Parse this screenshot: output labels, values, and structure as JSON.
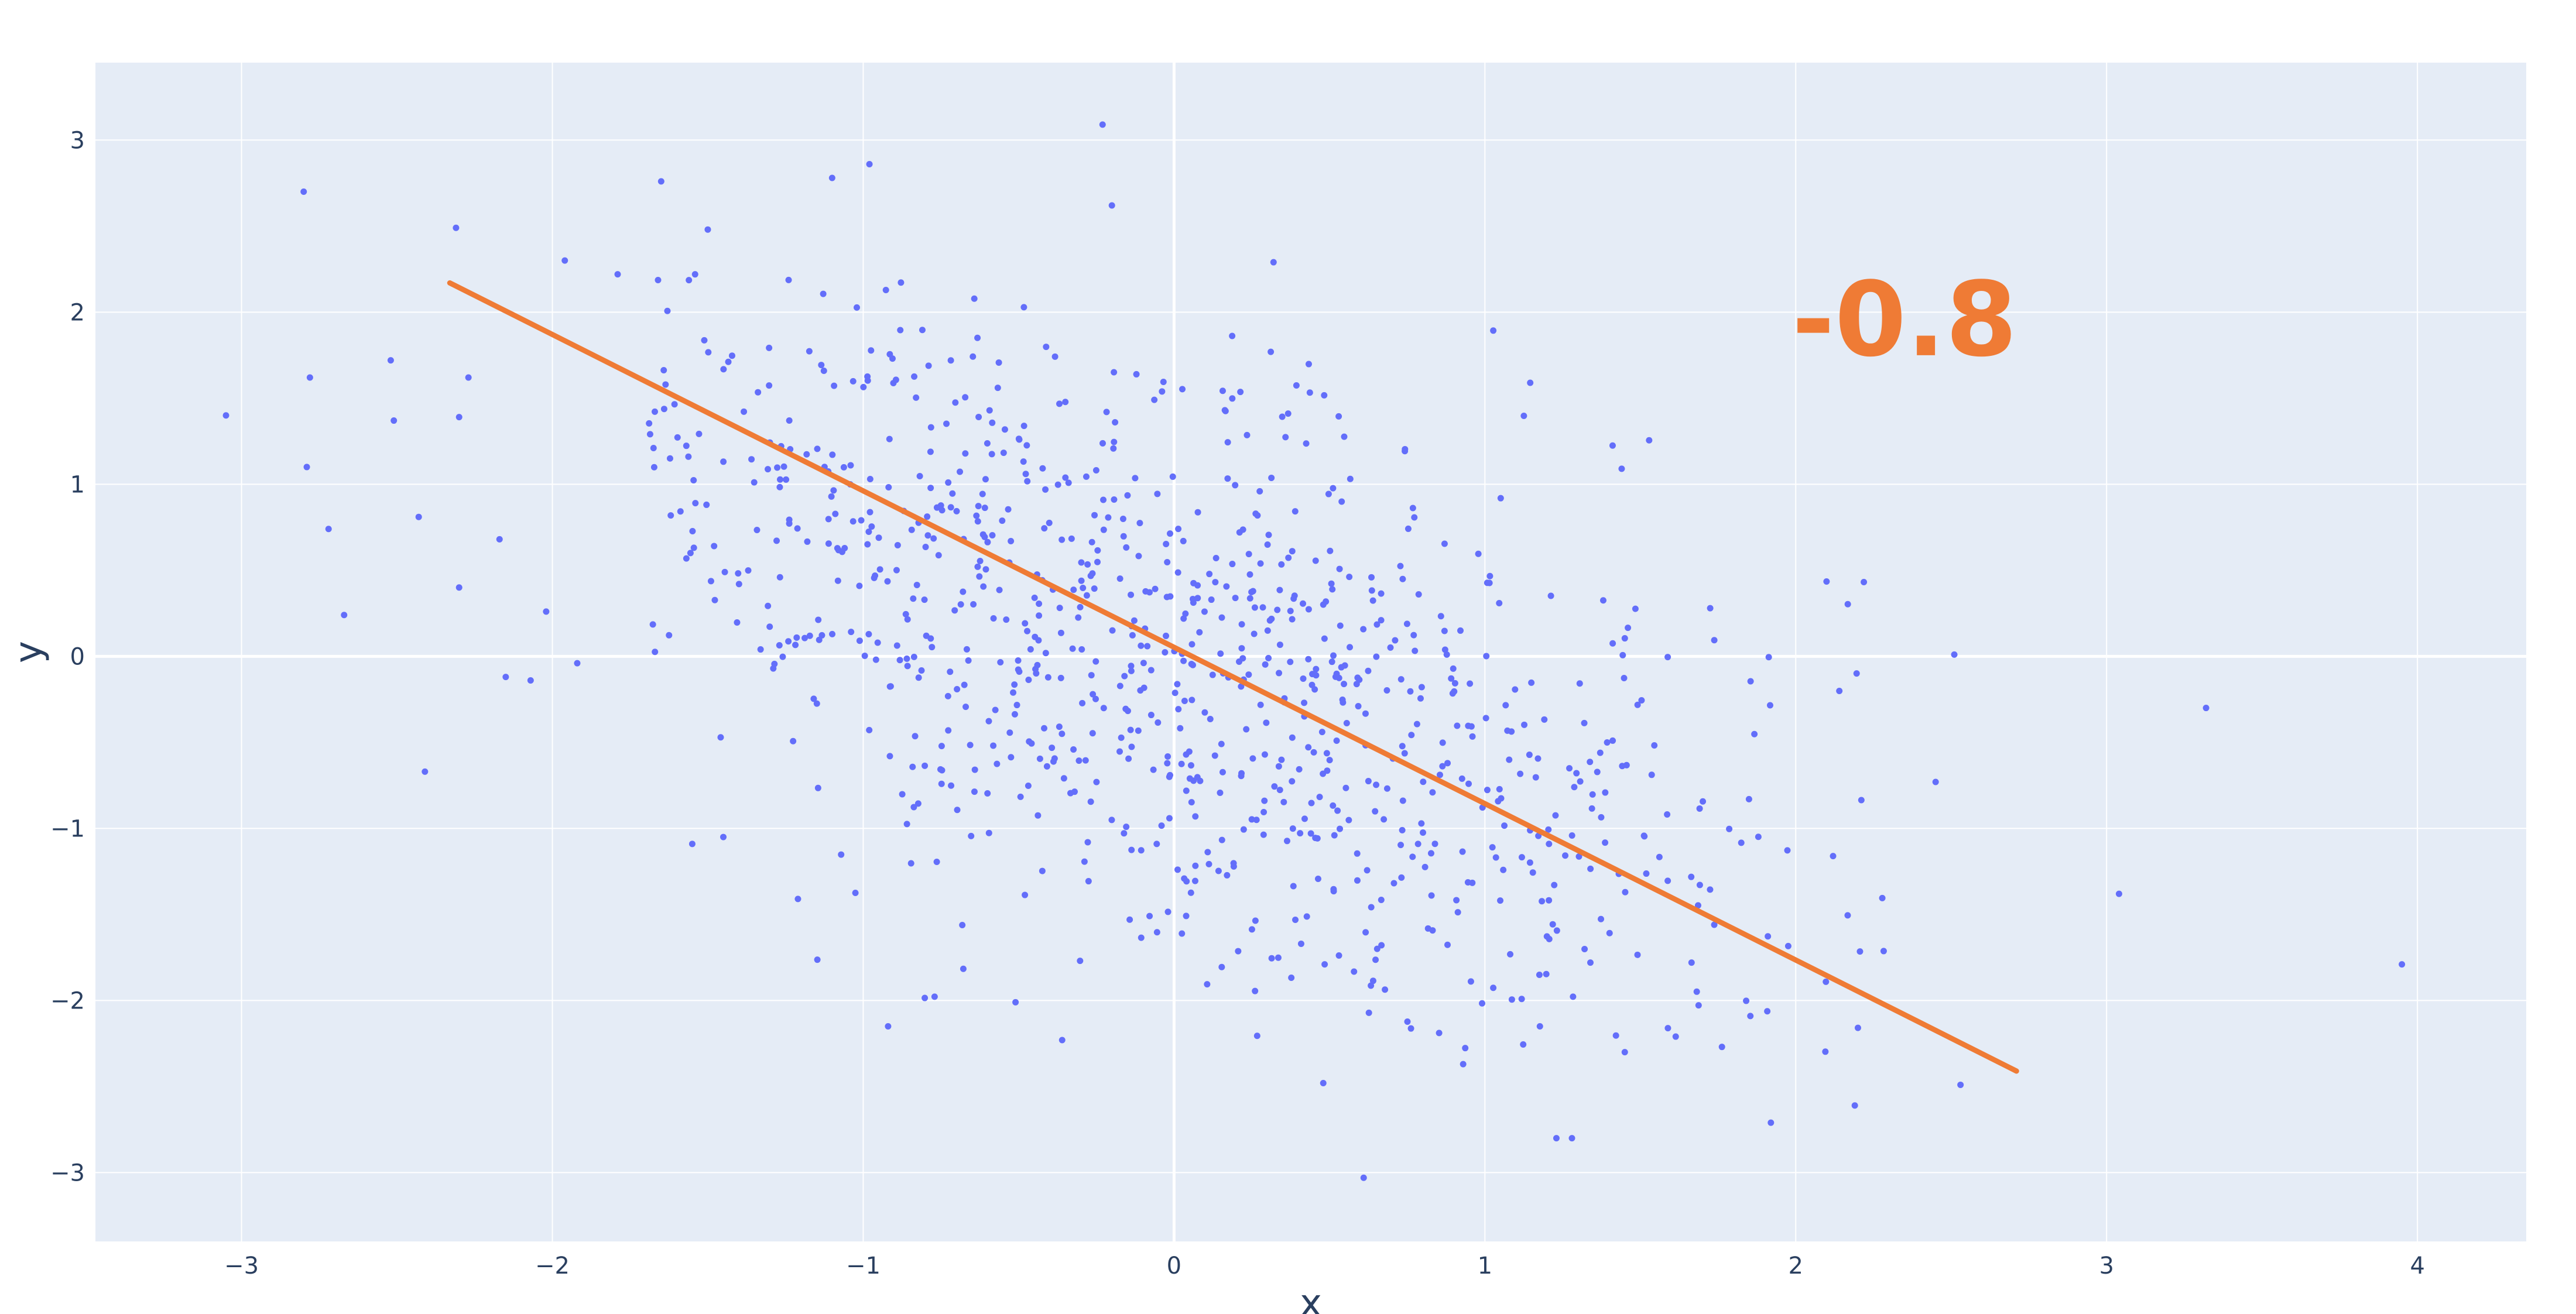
{
  "chart_data": {
    "type": "scatter",
    "xlabel": "x",
    "ylabel": "y",
    "xlim": [
      -3.47,
      4.35
    ],
    "ylim": [
      -3.4,
      3.45
    ],
    "x_ticks": [
      -3,
      -2,
      -1,
      0,
      1,
      2,
      3,
      4
    ],
    "y_ticks": [
      -3,
      -2,
      -1,
      0,
      1,
      2,
      3
    ],
    "x_tick_labels": [
      "−3",
      "−2",
      "−1",
      "0",
      "1",
      "2",
      "3",
      "4"
    ],
    "y_tick_labels": [
      "−3",
      "−2",
      "−1",
      "0",
      "1",
      "2",
      "3"
    ],
    "grid": true,
    "annotation": {
      "text": "-0.8",
      "x": 2.35,
      "y": 1.75
    },
    "colors": {
      "points": "#636efa",
      "line": "#ef7b35",
      "plot_bg": "#e5ecf6",
      "grid": "#ffffff",
      "annotation": "#ef7b35",
      "text": "#2a3f5f"
    },
    "series": [
      {
        "type": "scatter",
        "sample_size": 1000,
        "outliers": [
          {
            "x": -3.05,
            "y": 1.4
          },
          {
            "x": -2.8,
            "y": 2.7
          },
          {
            "x": -2.78,
            "y": 1.62
          },
          {
            "x": -2.79,
            "y": 1.1
          },
          {
            "x": -2.72,
            "y": 0.74
          },
          {
            "x": -2.67,
            "y": 0.24
          },
          {
            "x": -2.52,
            "y": 1.72
          },
          {
            "x": -2.51,
            "y": 1.37
          },
          {
            "x": -2.43,
            "y": 0.81
          },
          {
            "x": -2.41,
            "y": -0.67
          },
          {
            "x": -2.31,
            "y": 2.49
          },
          {
            "x": -2.3,
            "y": 1.39
          },
          {
            "x": -2.3,
            "y": 0.4
          },
          {
            "x": -2.27,
            "y": 1.62
          },
          {
            "x": -2.17,
            "y": 0.68
          },
          {
            "x": -2.15,
            "y": -0.12
          },
          {
            "x": -2.07,
            "y": -0.14
          },
          {
            "x": -2.02,
            "y": 0.26
          },
          {
            "x": -1.96,
            "y": 2.3
          },
          {
            "x": -1.92,
            "y": -0.04
          },
          {
            "x": -1.79,
            "y": 2.22
          },
          {
            "x": -1.65,
            "y": 2.76
          },
          {
            "x": -1.5,
            "y": 2.48
          },
          {
            "x": -1.55,
            "y": -1.09
          },
          {
            "x": -1.45,
            "y": -1.05
          },
          {
            "x": -1.21,
            "y": -1.41
          },
          {
            "x": -1.1,
            "y": 2.78
          },
          {
            "x": -0.98,
            "y": 2.86
          },
          {
            "x": -0.92,
            "y": -2.15
          },
          {
            "x": -0.23,
            "y": 3.09
          },
          {
            "x": -0.2,
            "y": 2.62
          },
          {
            "x": -0.51,
            "y": -2.01
          },
          {
            "x": -0.36,
            "y": -2.23
          },
          {
            "x": 0.32,
            "y": 2.29
          },
          {
            "x": 0.48,
            "y": -2.48
          },
          {
            "x": 0.61,
            "y": -3.03
          },
          {
            "x": 0.93,
            "y": -2.37
          },
          {
            "x": 1.23,
            "y": -2.8
          },
          {
            "x": 1.28,
            "y": -2.8
          },
          {
            "x": 1.45,
            "y": -2.3
          },
          {
            "x": 1.44,
            "y": 1.09
          },
          {
            "x": 1.92,
            "y": -2.71
          },
          {
            "x": 2.19,
            "y": -2.61
          },
          {
            "x": 2.53,
            "y": -2.49
          },
          {
            "x": 2.45,
            "y": -0.73
          },
          {
            "x": 2.51,
            "y": 0.01
          },
          {
            "x": 3.04,
            "y": -1.38
          },
          {
            "x": 3.32,
            "y": -0.3
          },
          {
            "x": 3.95,
            "y": -1.79
          }
        ]
      },
      {
        "type": "line",
        "points": [
          {
            "x": -2.33,
            "y": 2.17
          },
          {
            "x": 2.71,
            "y": -2.41
          }
        ]
      }
    ]
  }
}
